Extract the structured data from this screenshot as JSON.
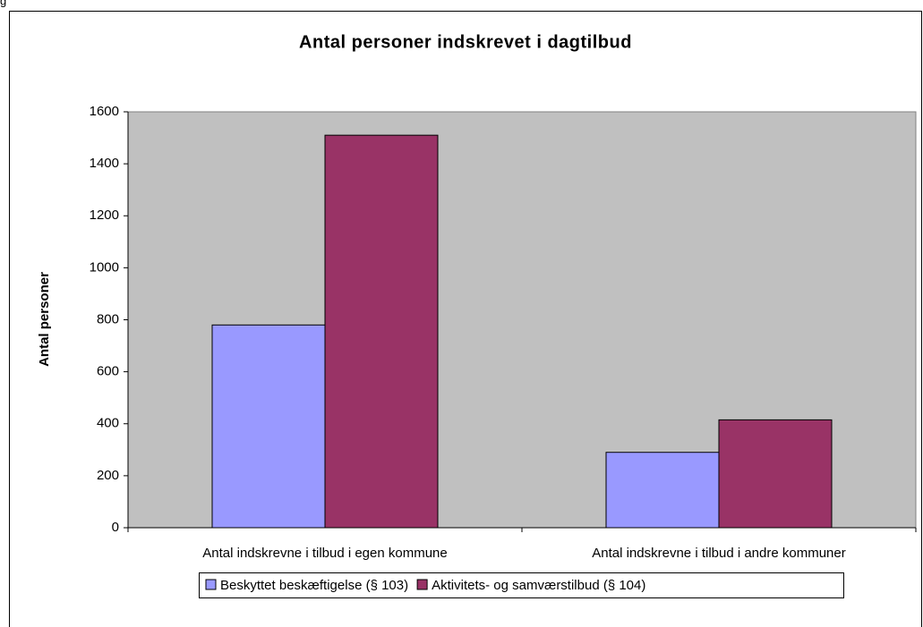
{
  "caption": "g",
  "chart_data": {
    "type": "bar",
    "title": "Antal personer indskrevet i dagtilbud",
    "y_label": "Antal personer",
    "categories": [
      "Antal indskrevne i tilbud i egen kommune",
      "Antal indskrevne i tilbud i andre kommuner"
    ],
    "series": [
      {
        "name": "Beskyttet beskæftigelse (§ 103)",
        "color": "#9999ff",
        "values": [
          780,
          290
        ]
      },
      {
        "name": "Aktivitets- og samværstilbud (§ 104)",
        "color": "#993366",
        "values": [
          1510,
          415
        ]
      }
    ],
    "ylim": [
      0,
      1600
    ],
    "yticks": [
      0,
      200,
      400,
      600,
      800,
      1000,
      1200,
      1400,
      1600
    ],
    "grid": false,
    "legend": "bottom",
    "plot_background": "#c0c0c0"
  }
}
